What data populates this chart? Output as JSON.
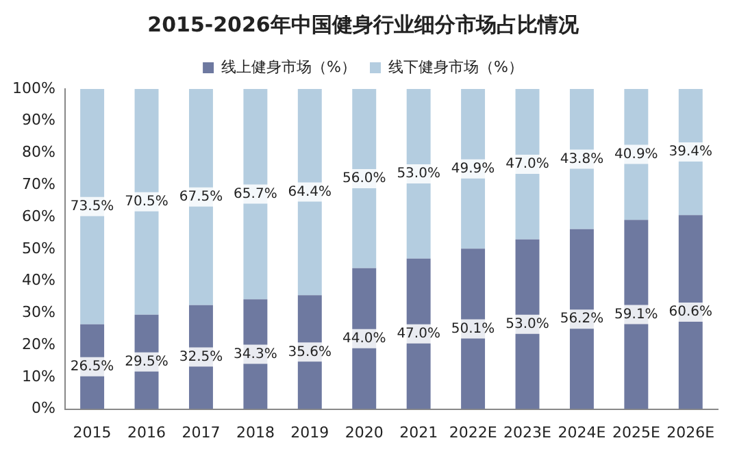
{
  "chart_data": {
    "type": "bar",
    "stacked": true,
    "title": "2015-2026年中国健身行业细分市场占比情况",
    "categories": [
      "2015",
      "2016",
      "2017",
      "2018",
      "2019",
      "2020",
      "2021",
      "2022E",
      "2023E",
      "2024E",
      "2025E",
      "2026E"
    ],
    "series": [
      {
        "name": "线上健身市场（%）",
        "color": "#6e79a0",
        "values": [
          26.5,
          29.5,
          32.5,
          34.3,
          35.6,
          44.0,
          47.0,
          50.1,
          53.0,
          56.2,
          59.1,
          60.6
        ],
        "value_labels": [
          "26.5%",
          "29.5%",
          "32.5%",
          "34.3%",
          "35.6%",
          "44.0%",
          "47.0%",
          "50.1%",
          "53.0%",
          "56.2%",
          "59.1%",
          "60.6%"
        ]
      },
      {
        "name": "线下健身市场（%）",
        "color": "#b4cde0",
        "values": [
          73.5,
          70.5,
          67.5,
          65.7,
          64.4,
          56.0,
          53.0,
          49.9,
          47.0,
          43.8,
          40.9,
          39.4
        ],
        "value_labels": [
          "73.5%",
          "70.5%",
          "67.5%",
          "65.7%",
          "64.4%",
          "56.0%",
          "53.0%",
          "49.9%",
          "47.0%",
          "43.8%",
          "40.9%",
          "39.4%"
        ]
      }
    ],
    "ylim": [
      0,
      100
    ],
    "yticks": [
      {
        "value": 0,
        "label": "0%"
      },
      {
        "value": 10,
        "label": "10%"
      },
      {
        "value": 20,
        "label": "20%"
      },
      {
        "value": 30,
        "label": "30%"
      },
      {
        "value": 40,
        "label": "40%"
      },
      {
        "value": 50,
        "label": "50%"
      },
      {
        "value": 60,
        "label": "60%"
      },
      {
        "value": 70,
        "label": "70%"
      },
      {
        "value": 80,
        "label": "80%"
      },
      {
        "value": 90,
        "label": "90%"
      },
      {
        "value": 100,
        "label": "100%"
      }
    ],
    "grid": false,
    "legend": "top"
  }
}
